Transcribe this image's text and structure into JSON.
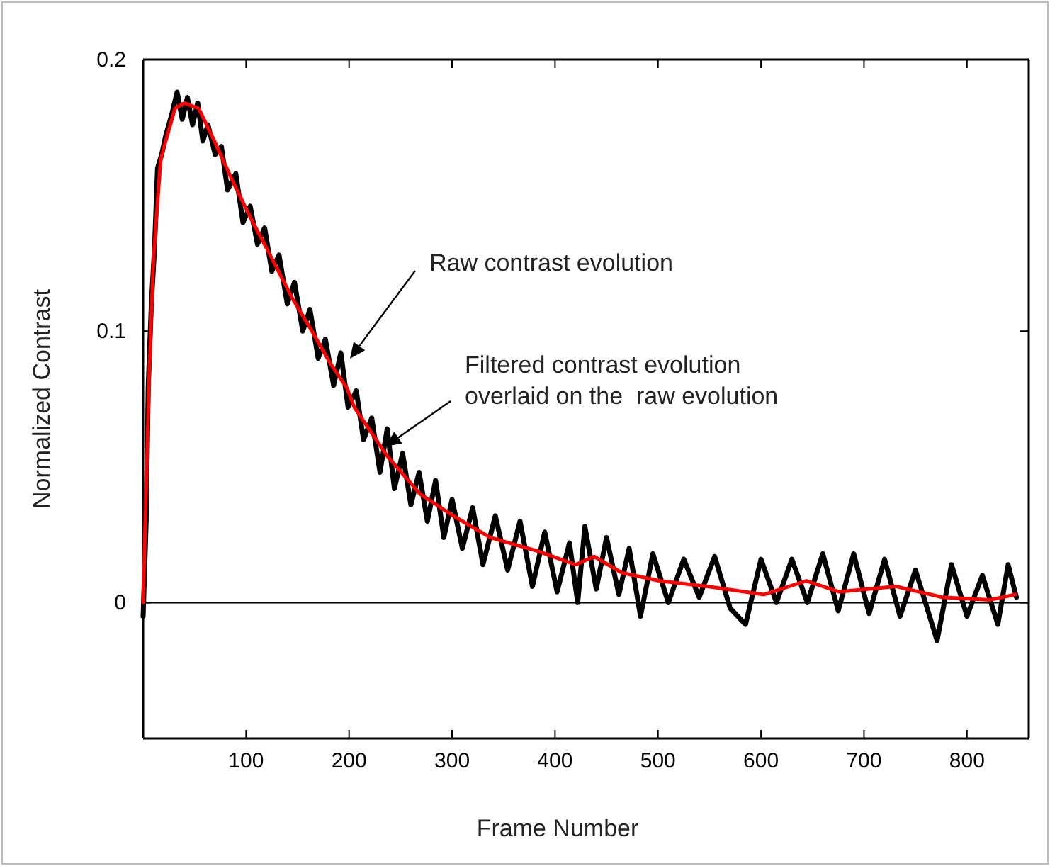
{
  "chart_data": {
    "type": "line",
    "xlabel": "Frame Number",
    "ylabel": "Normalized Contrast",
    "xlim": [
      0,
      860
    ],
    "ylim": [
      -0.05,
      0.2
    ],
    "xticks": [
      100,
      200,
      300,
      400,
      500,
      600,
      700,
      800
    ],
    "yticks": [
      0,
      0.1,
      0.2
    ],
    "grid": false,
    "marker": "none",
    "line_style": "solid",
    "ref_lines": [
      {
        "axis": "y",
        "value": 0,
        "color": "#000000"
      }
    ],
    "annotations": [
      "Raw contrast evolution",
      "Filtered contrast evolution\noverlaid on the  raw evolution"
    ],
    "series": [
      {
        "color": "#000000",
        "x": [
          0,
          3,
          5,
          8,
          11,
          14,
          18,
          22,
          28,
          33,
          38,
          43,
          48,
          53,
          58,
          63,
          70,
          76,
          82,
          90,
          97,
          104,
          111,
          118,
          125,
          132,
          140,
          147,
          155,
          162,
          170,
          177,
          185,
          192,
          199,
          207,
          214,
          222,
          230,
          237,
          244,
          252,
          260,
          268,
          276,
          284,
          292,
          300,
          310,
          320,
          330,
          342,
          354,
          366,
          378,
          390,
          402,
          414,
          422,
          429,
          440,
          450,
          462,
          472,
          483,
          495,
          510,
          525,
          540,
          555,
          570,
          585,
          600,
          615,
          630,
          645,
          660,
          675,
          690,
          705,
          720,
          735,
          750,
          771,
          785,
          800,
          815,
          830,
          840,
          848
        ],
        "values": [
          -0.005,
          0.03,
          0.08,
          0.11,
          0.13,
          0.16,
          0.165,
          0.172,
          0.18,
          0.188,
          0.178,
          0.186,
          0.176,
          0.184,
          0.17,
          0.176,
          0.165,
          0.168,
          0.152,
          0.158,
          0.14,
          0.146,
          0.132,
          0.138,
          0.122,
          0.128,
          0.11,
          0.118,
          0.1,
          0.108,
          0.09,
          0.097,
          0.08,
          0.092,
          0.072,
          0.078,
          0.06,
          0.068,
          0.048,
          0.064,
          0.042,
          0.055,
          0.036,
          0.048,
          0.03,
          0.045,
          0.024,
          0.038,
          0.02,
          0.035,
          0.014,
          0.032,
          0.012,
          0.03,
          0.006,
          0.026,
          0.004,
          0.022,
          0.0,
          0.028,
          0.005,
          0.024,
          0.003,
          0.02,
          -0.005,
          0.018,
          0.0,
          0.016,
          0.002,
          0.017,
          -0.002,
          -0.008,
          0.016,
          0.0,
          0.016,
          0.0,
          0.018,
          -0.003,
          0.018,
          -0.004,
          0.016,
          -0.005,
          0.012,
          -0.014,
          0.014,
          -0.005,
          0.01,
          -0.008,
          0.014,
          0.002
        ]
      },
      {
        "color": "#ff0000",
        "x": [
          0,
          6,
          10,
          17,
          22,
          31,
          40,
          54,
          68,
          86,
          104,
          122,
          145,
          164,
          182,
          198,
          205,
          237,
          269,
          301,
          337,
          383,
          420,
          438,
          465,
          502,
          548,
          603,
          644,
          676,
          731,
          776,
          822,
          847
        ],
        "values": [
          0,
          0.084,
          0.126,
          0.163,
          0.17,
          0.182,
          0.184,
          0.182,
          0.171,
          0.156,
          0.142,
          0.129,
          0.112,
          0.1,
          0.088,
          0.079,
          0.072,
          0.054,
          0.04,
          0.032,
          0.024,
          0.019,
          0.014,
          0.017,
          0.011,
          0.008,
          0.006,
          0.003,
          0.008,
          0.004,
          0.006,
          0.002,
          0.001,
          0.003
        ]
      }
    ]
  }
}
